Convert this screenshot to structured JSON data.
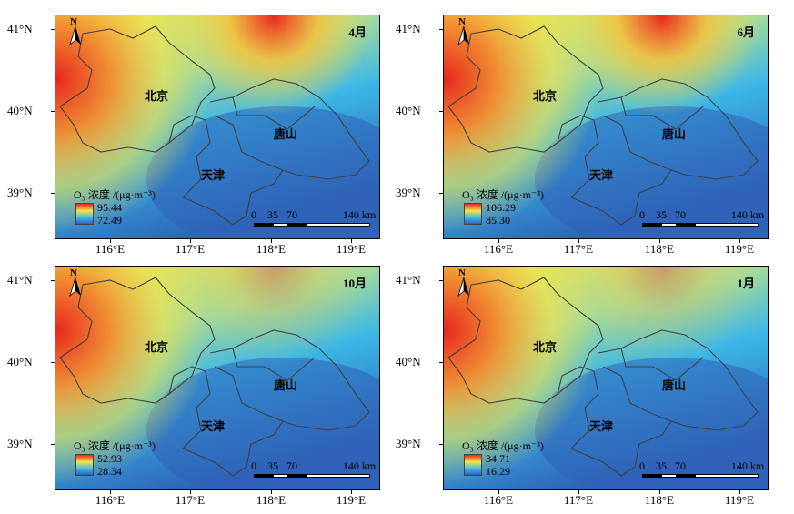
{
  "axes": {
    "y_ticks": [
      "41°N",
      "40°N",
      "39°N"
    ],
    "x_ticks": [
      "116°E",
      "117°E",
      "118°E",
      "119°E"
    ]
  },
  "north_arrow": {
    "label": "N",
    "icon": "north-arrow-icon"
  },
  "scale_bar": {
    "labels": [
      "0",
      "35",
      "70",
      "140 km"
    ]
  },
  "cities": {
    "beijing": "北京",
    "tianjin": "天津",
    "tangshan": "唐山"
  },
  "legend_title": "O₃ 浓度 /(μg·m⁻³)",
  "colors": {
    "high": "#e8251e",
    "mid_high": "#f4e44a",
    "mid": "#3bb6e6",
    "low": "#2f63b8",
    "border": "#404040"
  },
  "panels": [
    {
      "month": "4月",
      "legend_max": "95.44",
      "legend_min": "72.49"
    },
    {
      "month": "6月",
      "legend_max": "106.29",
      "legend_min": "85.30"
    },
    {
      "month": "10月",
      "legend_max": "52.93",
      "legend_min": "28.34"
    },
    {
      "month": "1月",
      "legend_max": "34.71",
      "legend_min": "16.29"
    }
  ]
}
